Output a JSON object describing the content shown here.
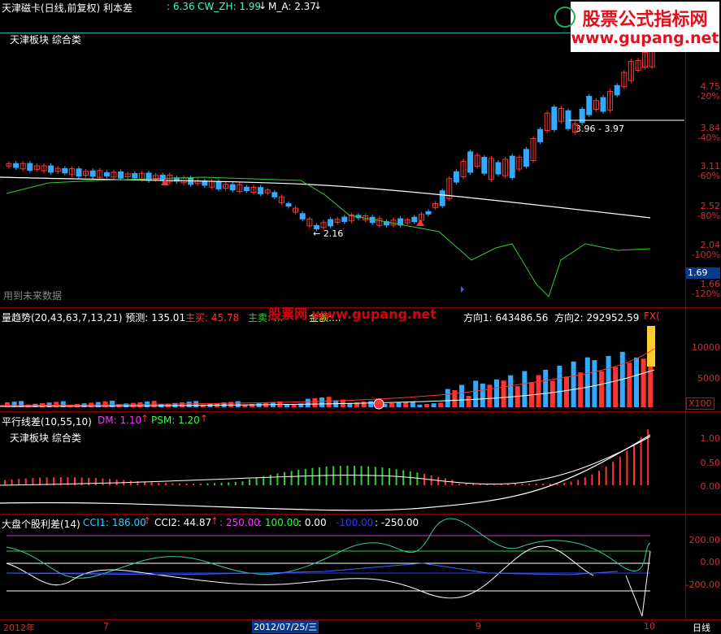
{
  "main": {
    "title": "天津磁卡(日线,前复权) 利本差",
    "ind1_val": ": 6.36",
    "ind2": "CW_ZH: 1.99",
    "ind3": "M_A: 2.37",
    "sector": "天津板块 综合类",
    "future_note": "用到未来数据",
    "low_label": "← 2.16",
    "range_label": "3.96 - 3.97",
    "price_badge": "1.69",
    "ticks": [
      "4.75",
      "-20%",
      "3.84",
      "-40%",
      "3.11",
      "-60%",
      "2.52",
      "-80%",
      "2.04",
      "-100%",
      "1.66",
      "-120%"
    ]
  },
  "volume": {
    "title": "量趋势(20,43,63,7,13,21) 预测: 135.01",
    "zhumai": "主买: 45.78",
    "zhumai2": "主卖: ...",
    "zhue": "金额:...",
    "fx1": "方向1: 643486.56",
    "fx2": "方向2: 292952.59",
    "fx_tag": "FX(",
    "ticks": [
      "10000",
      "5000"
    ],
    "unit": "X100",
    "watermark": "股票网 www.gupang.net"
  },
  "pxc": {
    "title": "平行线差(10,55,10)",
    "dm": "DM: 1.10",
    "psm": "PSM: 1.20",
    "sector": "天津板块 综合类",
    "ticks": [
      "1.00",
      "0.50",
      "0.00"
    ]
  },
  "cci": {
    "title": "大盘个股利差(14)",
    "cci1": "CCI1: 186.00",
    "cci2": "CCI2: 44.87",
    "l1": ": 250.00",
    "l2": ": 100.00",
    "l3": ": 0.00",
    "l4": "-100.00",
    "l5": ": -250.00",
    "ticks": [
      "200.00",
      "0.00",
      "-200.00"
    ]
  },
  "timeaxis": {
    "labels": [
      "2012年",
      "7",
      "2012/07/25/三",
      "9",
      "10"
    ],
    "period": "日线"
  },
  "watermark": {
    "line1": "股票公式指标网",
    "line2": "www.gupang.net"
  },
  "colors": {
    "up": "#ff3333",
    "down": "#33aaff",
    "ma_white": "#ffffff",
    "ma_green": "#33cc33",
    "frame": "#8b0000"
  }
}
